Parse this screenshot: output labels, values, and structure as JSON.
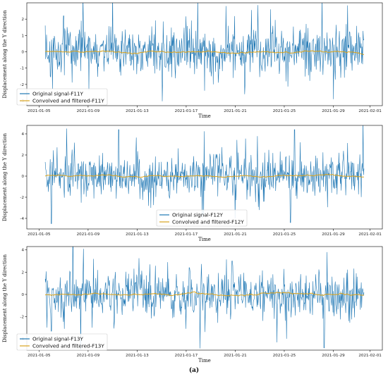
{
  "caption": "(a)",
  "chart_data": [
    {
      "type": "line",
      "xlabel": "Time",
      "ylabel": "Displacement along the Y direction",
      "x_range": [
        "2021-01-05",
        "2021-01-31"
      ],
      "xlim": [
        "2021-01-04",
        "2021-02-02"
      ],
      "x_ticks": [
        "2021-01-05",
        "2021-01-09",
        "2021-01-13",
        "2021-01-17",
        "2021-01-21",
        "2021-01-25",
        "2021-01-29",
        "2021-02-01"
      ],
      "ylim": [
        -3.3,
        3.0
      ],
      "y_ticks": [
        -3,
        -2,
        -1,
        0,
        1,
        2
      ],
      "legend_position": "lower-left",
      "grid": false,
      "series": [
        {
          "name": "Original signal-F11Y",
          "color": "#1f77b4",
          "kind": "noise",
          "amplitude": 0.7,
          "seed": 11,
          "spikes": [
            [
              "2021-01-20 06:00",
              2.8
            ],
            [
              "2021-01-20 20:00",
              -1.6
            ],
            [
              "2021-01-23 21:00",
              2.6
            ],
            [
              "2021-01-29 00:00",
              -2.9
            ],
            [
              "2021-01-07 00:00",
              2.2
            ]
          ]
        },
        {
          "name": "Convolved and filtered-F11Y",
          "color": "#d9a31e",
          "kind": "smooth",
          "amplitude": 0.04,
          "seed": 12
        }
      ]
    },
    {
      "type": "line",
      "xlabel": "Time",
      "ylabel": "Displacement along the Y direction",
      "x_range": [
        "2021-01-05",
        "2021-01-31"
      ],
      "xlim": [
        "2021-01-04",
        "2021-02-02"
      ],
      "x_ticks": [
        "2021-01-05",
        "2021-01-09",
        "2021-01-13",
        "2021-01-17",
        "2021-01-21",
        "2021-01-25",
        "2021-01-29",
        "2021-02-01"
      ],
      "ylim": [
        -5.0,
        4.8
      ],
      "y_ticks": [
        -4,
        -2,
        0,
        2,
        4
      ],
      "legend_position": "lower-center",
      "grid": false,
      "series": [
        {
          "name": "Original signal-F12Y",
          "color": "#1f77b4",
          "kind": "noise",
          "amplitude": 1.0,
          "seed": 21,
          "spikes": [
            [
              "2021-01-06 00:00",
              -4.5
            ],
            [
              "2021-01-07 06:00",
              4.5
            ],
            [
              "2021-01-11 12:00",
              4.4
            ],
            [
              "2021-01-21 00:00",
              -4.0
            ],
            [
              "2021-01-25 12:00",
              -4.4
            ],
            [
              "2021-01-25 20:00",
              4.4
            ]
          ]
        },
        {
          "name": "Convolved and filtered-F12Y",
          "color": "#d9a31e",
          "kind": "smooth",
          "amplitude": 0.05,
          "seed": 22
        }
      ]
    },
    {
      "type": "line",
      "xlabel": "Time",
      "ylabel": "Displacement along the Y direction",
      "x_range": [
        "2021-01-05",
        "2021-01-31"
      ],
      "xlim": [
        "2021-01-04",
        "2021-02-02"
      ],
      "x_ticks": [
        "2021-01-05",
        "2021-01-09",
        "2021-01-13",
        "2021-01-17",
        "2021-01-21",
        "2021-01-25",
        "2021-01-29",
        "2021-02-01"
      ],
      "ylim": [
        -5.0,
        4.3
      ],
      "y_ticks": [
        -4,
        -2,
        0,
        2,
        4
      ],
      "legend_position": "lower-left",
      "grid": false,
      "series": [
        {
          "name": "Original signal-F13Y",
          "color": "#1f77b4",
          "kind": "noise",
          "amplitude": 0.9,
          "seed": 31,
          "spikes": [
            [
              "2021-01-06 00:00",
              -3.3
            ],
            [
              "2021-01-28 06:00",
              -4.8
            ],
            [
              "2021-01-28 12:00",
              3.8
            ],
            [
              "2021-01-20 18:00",
              3.0
            ],
            [
              "2021-01-17 06:00",
              2.4
            ]
          ]
        },
        {
          "name": "Convolved and filtered-F13Y",
          "color": "#d9a31e",
          "kind": "smooth",
          "amplitude": 0.06,
          "seed": 32
        }
      ]
    }
  ]
}
